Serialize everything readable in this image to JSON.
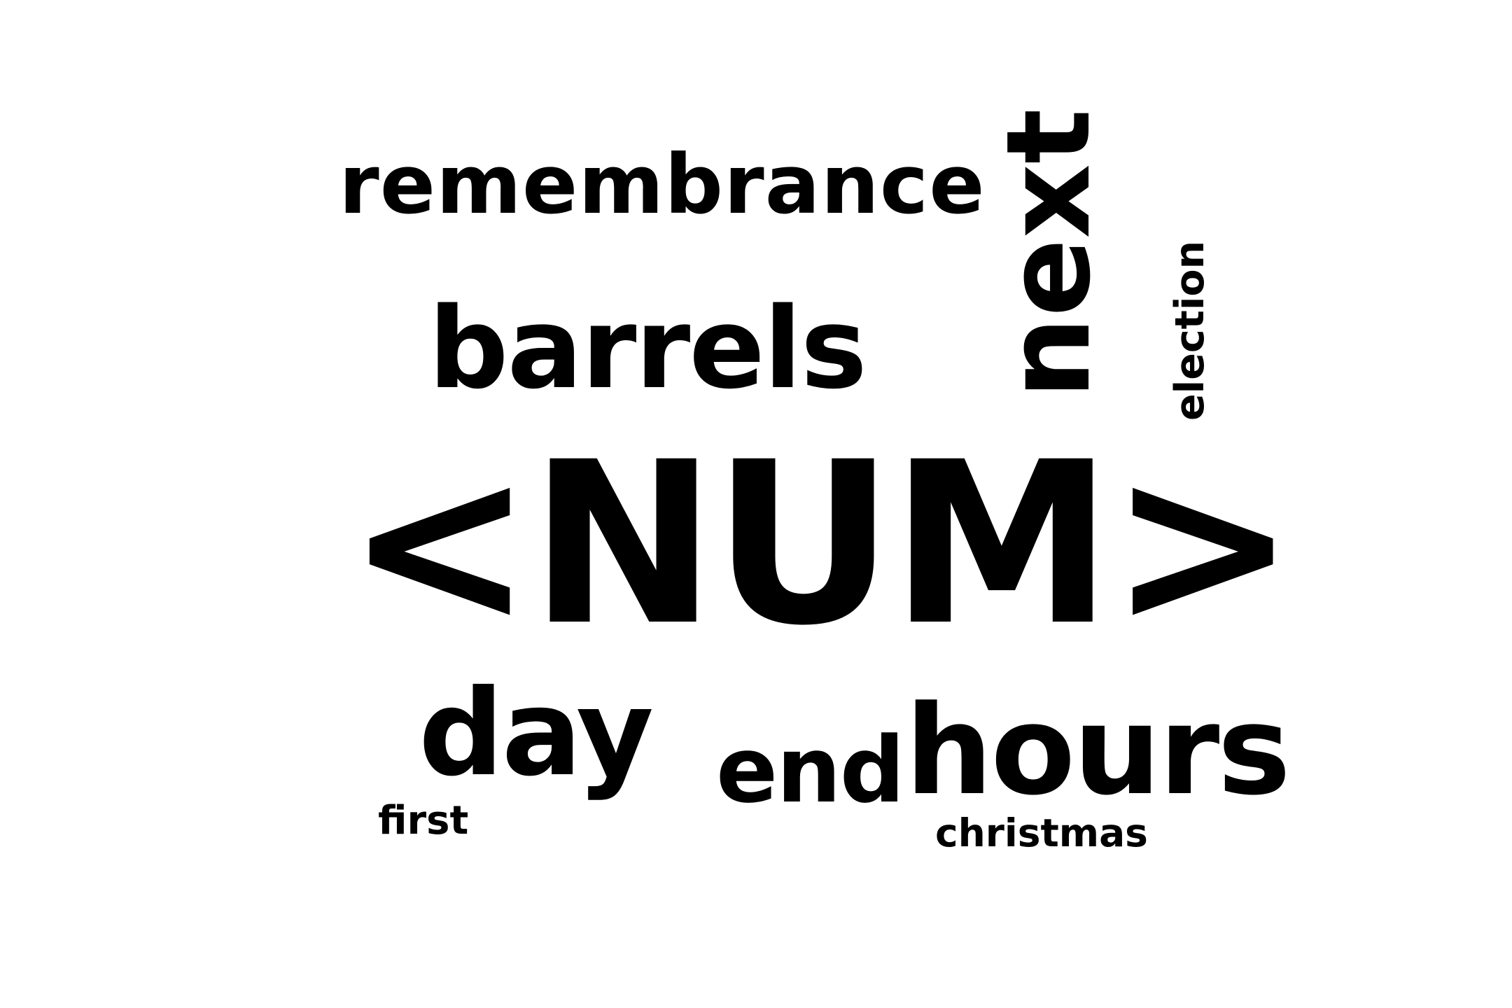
{
  "word_cloud": {
    "words": [
      {
        "text": "remembrance",
        "orientation": "horizontal"
      },
      {
        "text": "barrels",
        "orientation": "horizontal"
      },
      {
        "text": "next",
        "orientation": "vertical"
      },
      {
        "text": "election",
        "orientation": "vertical"
      },
      {
        "text": "<NUM>",
        "orientation": "horizontal"
      },
      {
        "text": "day",
        "orientation": "horizontal"
      },
      {
        "text": "end",
        "orientation": "horizontal"
      },
      {
        "text": "hours",
        "orientation": "horizontal"
      },
      {
        "text": "first",
        "orientation": "horizontal"
      },
      {
        "text": "christmas",
        "orientation": "horizontal"
      }
    ],
    "colors": {
      "text": "#000000",
      "background": "#ffffff"
    }
  }
}
